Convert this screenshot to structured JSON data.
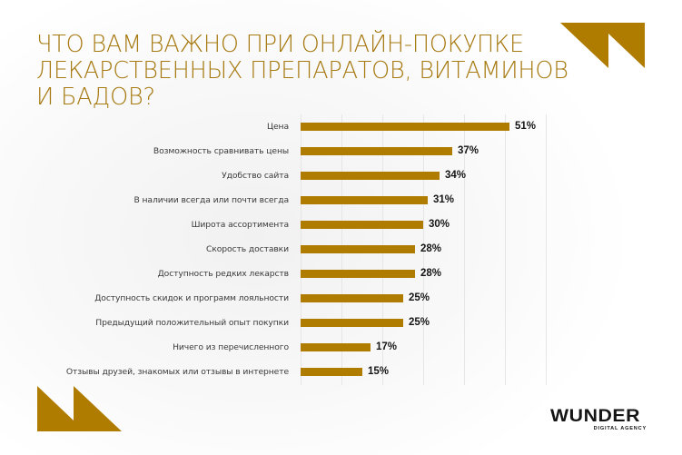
{
  "title": {
    "lines": [
      "Что вам важно при онлайн-покупке",
      "лекарственных препаратов, витаминов",
      "и бадов?"
    ]
  },
  "colors": {
    "accent": "#b07c00",
    "title": "#a77a12",
    "value_text": "#151515",
    "label_text": "#3a3a3a",
    "gridline": "#e6e6e6"
  },
  "logo": {
    "name": "WUNDER",
    "subtitle": "DIGITAL AGENCY"
  },
  "decorations": [
    "top-right-double-triangle-icon",
    "bottom-left-double-triangle-icon"
  ],
  "chart_data": {
    "type": "bar",
    "orientation": "horizontal",
    "title": "ЧТО ВАМ ВАЖНО ПРИ ОНЛАЙН-ПОКУПКЕ ЛЕКАРСТВЕННЫХ ПРЕПАРАТОВ, ВИТАМИНОВ И БАДОВ?",
    "xlabel": "",
    "ylabel": "",
    "unit": "%",
    "xlim": [
      0,
      60
    ],
    "grid": true,
    "gridlines": [
      0,
      10,
      20,
      30,
      40,
      50,
      60
    ],
    "legend": null,
    "categories": [
      "Цена",
      "Возможность сравнивать цены",
      "Удобство сайта",
      "В наличии всегда или почти всегда",
      "Широта ассортимента",
      "Скорость доставки",
      "Доступность редких лекарств",
      "Доступность скидок и программ лояльности",
      "Предыдущий положительный опыт покупки",
      "Ничего из перечисленного",
      "Отзывы друзей, знакомых или отзывы в интернете"
    ],
    "values": [
      51,
      37,
      34,
      31,
      30,
      28,
      28,
      25,
      25,
      17,
      15
    ],
    "value_labels": [
      "51%",
      "37%",
      "34%",
      "31%",
      "30%",
      "28%",
      "28%",
      "25%",
      "25%",
      "17%",
      "15%"
    ]
  }
}
